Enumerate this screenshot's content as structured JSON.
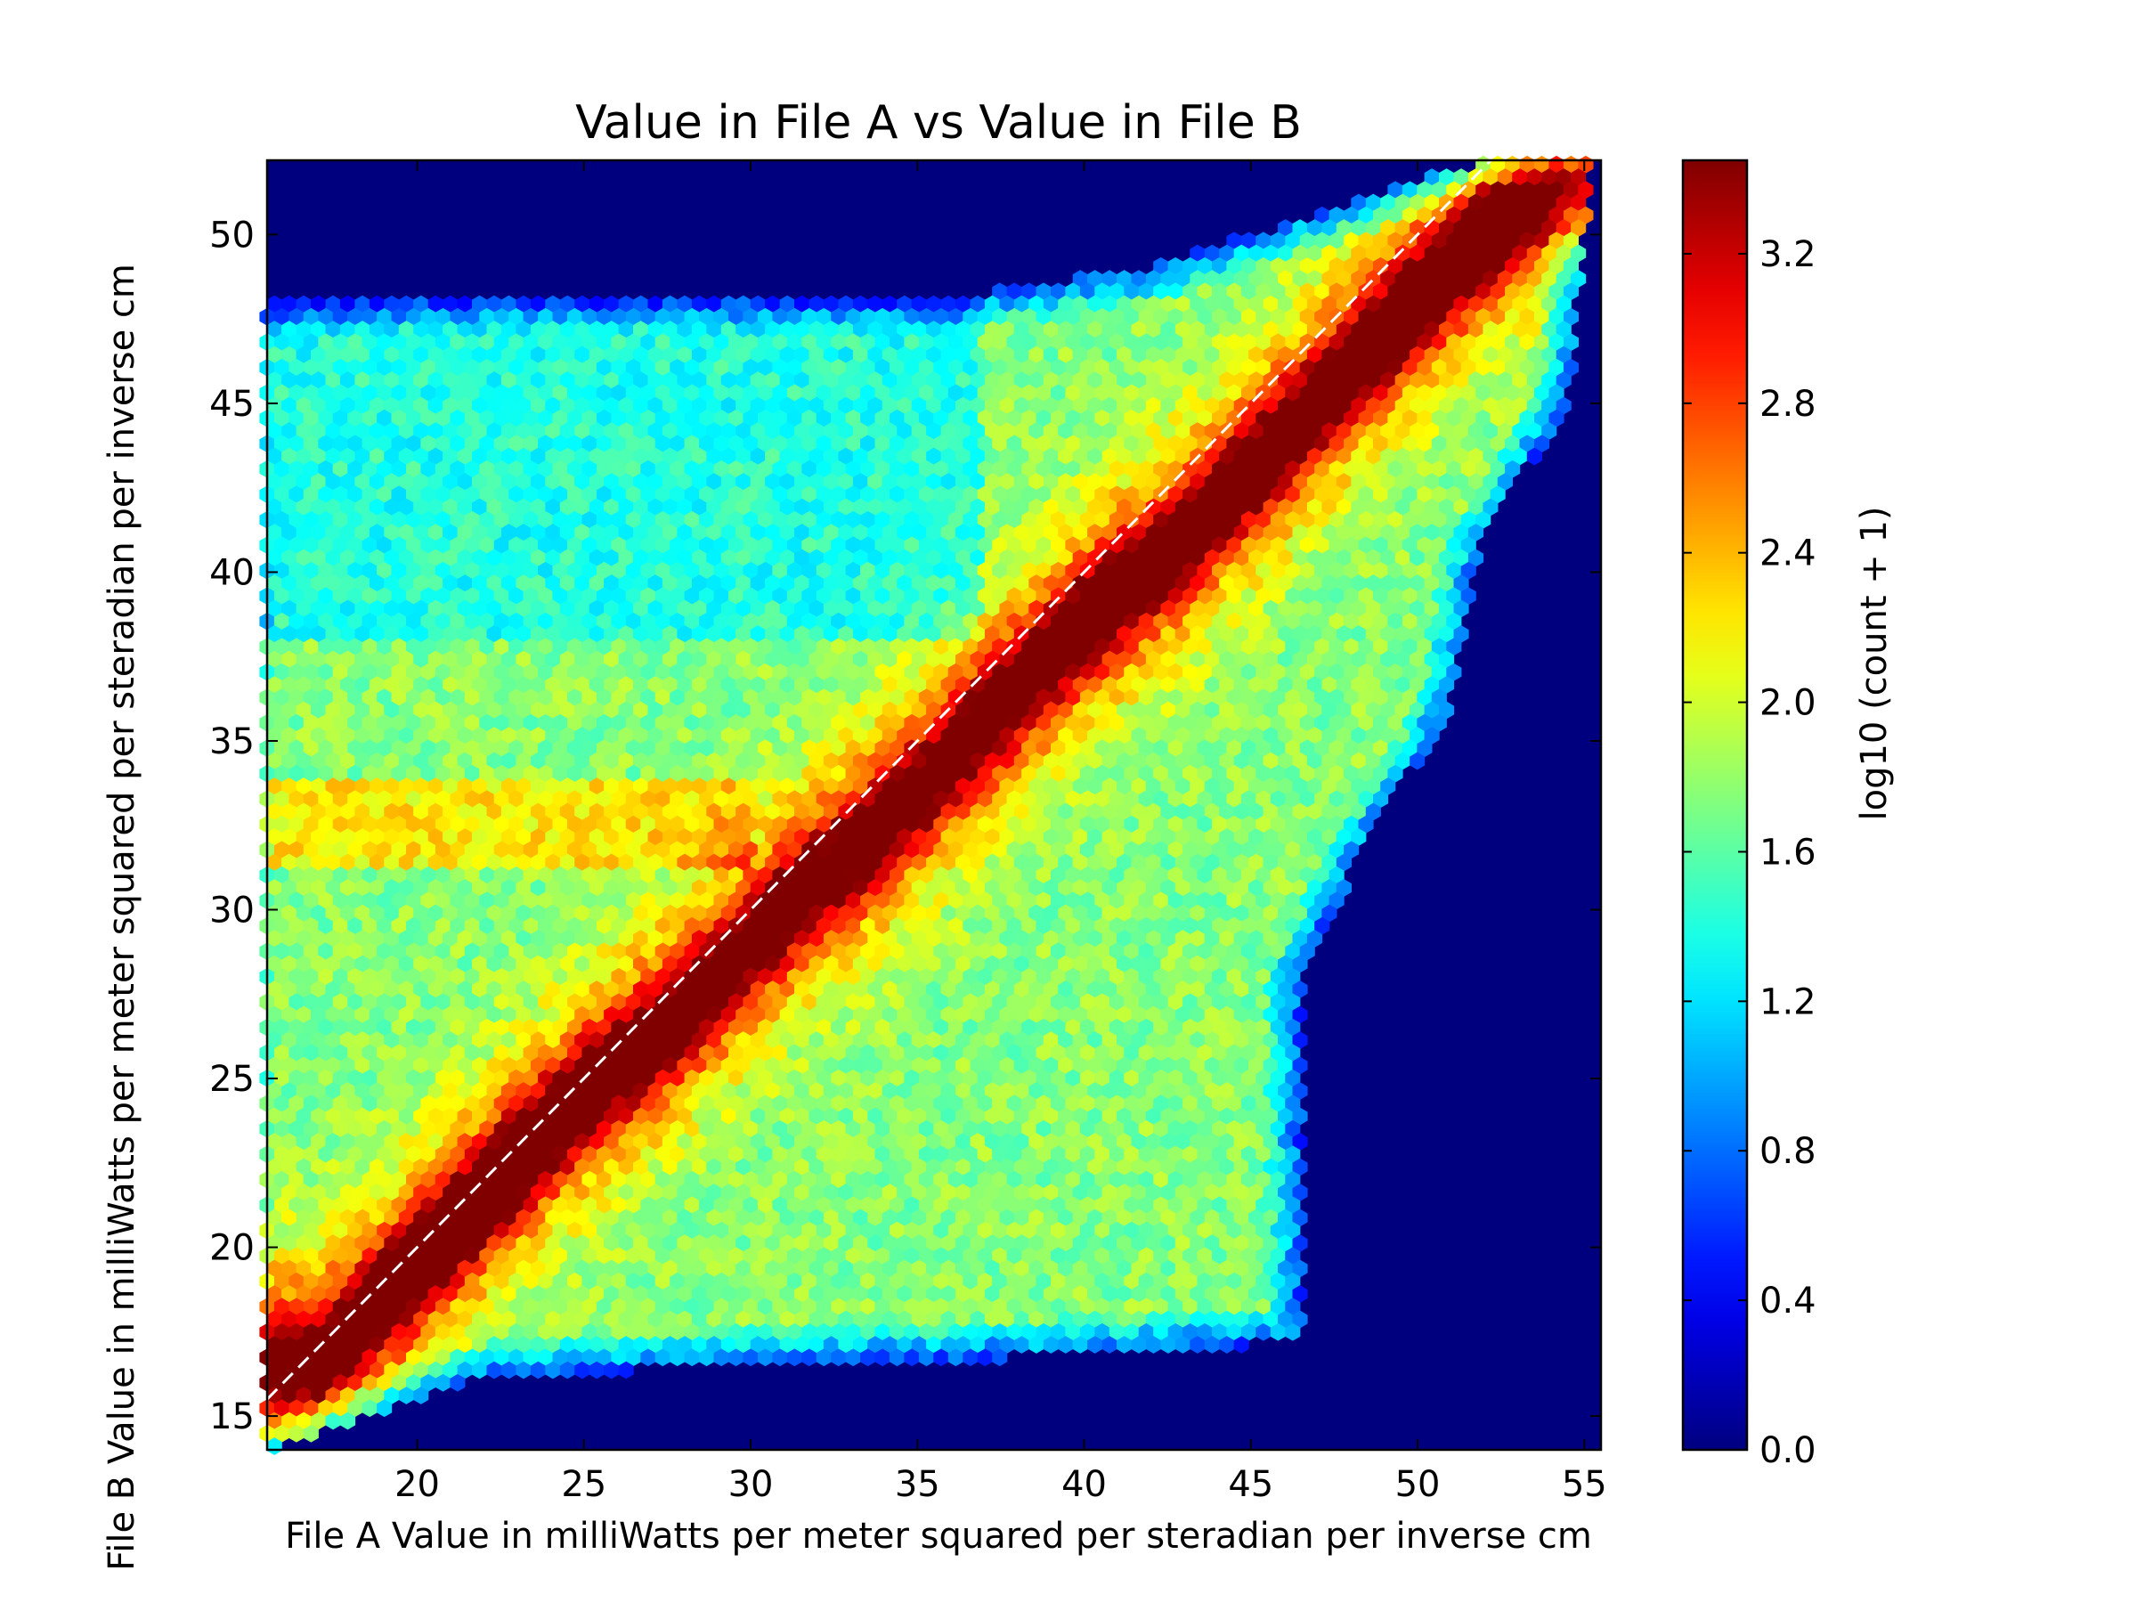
{
  "chart_data": {
    "type": "heatmap",
    "subtype": "hexbin",
    "title": "Value in File A vs Value in File B",
    "xlabel": "File A Value in milliWatts per meter squared per steradian per inverse cm",
    "ylabel": "File B Value in milliWatts per meter squared per steradian per inverse cm",
    "xlim": [
      15.5,
      55.5
    ],
    "ylim": [
      14,
      52.2
    ],
    "xticks": [
      20,
      25,
      30,
      35,
      40,
      45,
      50,
      55
    ],
    "yticks": [
      15,
      20,
      25,
      30,
      35,
      40,
      45,
      50
    ],
    "background_color": "#00007f",
    "colormap": "jet",
    "colorbar": {
      "label": "log10 (count + 1)",
      "range": [
        0.0,
        3.45
      ],
      "ticks": [
        "0.0",
        "0.4",
        "0.8",
        "1.2",
        "1.6",
        "2.0",
        "2.4",
        "2.8",
        "3.2"
      ],
      "tick_values": [
        0.0,
        0.4,
        0.8,
        1.2,
        1.6,
        2.0,
        2.4,
        2.8,
        3.2
      ]
    },
    "reference_line": {
      "style": "dashed",
      "color": "#ffffff",
      "equation": "y = x"
    },
    "density_ridge": {
      "description_values": "peak log10(count+1) along ridge",
      "x": [
        17,
        20,
        22,
        25,
        28,
        31,
        34,
        37,
        40,
        43,
        46,
        49,
        52,
        54
      ],
      "y": [
        16.5,
        19.5,
        21.5,
        24.5,
        27,
        30,
        32.5,
        35.5,
        38.5,
        41,
        44,
        47,
        50,
        51.5
      ],
      "peak": [
        2.9,
        3.3,
        3.4,
        3.2,
        3.0,
        3.0,
        2.9,
        3.0,
        3.1,
        3.1,
        3.1,
        3.3,
        3.4,
        3.0
      ]
    },
    "data_region": {
      "x_range": [
        15.5,
        55.2
      ],
      "y_range": [
        14,
        52.2
      ],
      "lower_edge": {
        "x": [
          15.5,
          22,
          30,
          40,
          46.5
        ],
        "y": [
          14,
          16.2,
          16.5,
          16.8,
          17.2
        ]
      },
      "right_edge": {
        "y": [
          17.2,
          28,
          32,
          36,
          41,
          45,
          52
        ],
        "x": [
          46.5,
          46.5,
          48.5,
          51,
          52,
          54.5,
          55.2
        ]
      },
      "upper_edge": {
        "x": [
          15.5,
          20,
          37,
          42,
          45,
          52,
          55
        ],
        "y": [
          48,
          48.3,
          48.3,
          49,
          50,
          52.2,
          52.2
        ]
      }
    }
  }
}
